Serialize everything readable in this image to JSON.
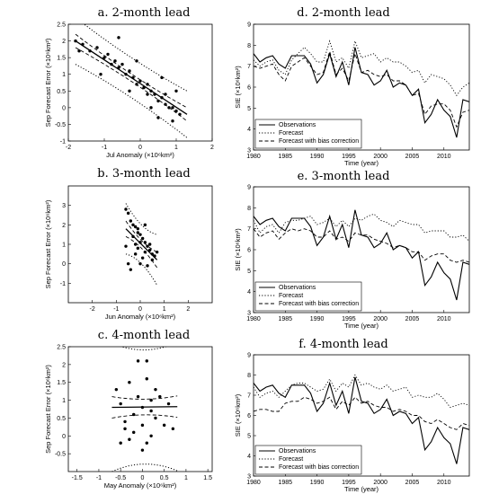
{
  "chart_data": [
    {
      "id": "a",
      "type": "scatter",
      "title": "a. 2-month lead",
      "xlabel": "Jul Anomaly (×10⁶km²)",
      "ylabel": "Sep Forecast Error (×10⁶km²)",
      "xlim": [
        -2,
        2
      ],
      "ylim": [
        -1,
        2.5
      ],
      "xticks": [
        -2,
        -1,
        0,
        1,
        2
      ],
      "yticks": [
        -1,
        -0.5,
        0,
        0.5,
        1,
        1.5,
        2,
        2.5
      ],
      "points": [
        [
          -1.8,
          2.0
        ],
        [
          -1.6,
          1.9
        ],
        [
          -1.4,
          1.7
        ],
        [
          -1.2,
          1.8
        ],
        [
          -1.0,
          1.5
        ],
        [
          -0.9,
          1.6
        ],
        [
          -0.8,
          1.3
        ],
        [
          -0.7,
          1.4
        ],
        [
          -0.6,
          1.2
        ],
        [
          -0.5,
          1.3
        ],
        [
          -0.4,
          1.0
        ],
        [
          -0.3,
          1.1
        ],
        [
          -0.2,
          0.9
        ],
        [
          -0.1,
          0.7
        ],
        [
          0.0,
          0.8
        ],
        [
          0.1,
          0.6
        ],
        [
          0.2,
          0.7
        ],
        [
          0.3,
          0.5
        ],
        [
          0.4,
          0.4
        ],
        [
          0.5,
          0.2
        ],
        [
          0.6,
          0.3
        ],
        [
          0.7,
          0.1
        ],
        [
          0.8,
          0.0
        ],
        [
          0.9,
          0.0
        ],
        [
          1.0,
          -0.1
        ],
        [
          1.1,
          -0.2
        ],
        [
          -1.1,
          1.0
        ],
        [
          -0.6,
          2.1
        ],
        [
          0.2,
          0.4
        ],
        [
          0.5,
          -0.3
        ],
        [
          0.6,
          0.9
        ],
        [
          0.9,
          -0.4
        ],
        [
          1.0,
          0.5
        ],
        [
          -0.3,
          0.5
        ],
        [
          0.3,
          0.0
        ],
        [
          -1.7,
          1.7
        ],
        [
          -0.1,
          1.4
        ],
        [
          0.7,
          0.4
        ]
      ],
      "fit": {
        "x": [
          -1.8,
          1.3
        ],
        "y": [
          2.0,
          -0.2
        ],
        "ci_halfwidth": [
          0.2,
          0.11,
          0.2
        ],
        "pi_halfwidth": [
          0.7,
          0.6,
          0.7
        ]
      }
    },
    {
      "id": "b",
      "type": "scatter",
      "title": "b. 3-month lead",
      "xlabel": "Jun Anomaly (×10⁶km²)",
      "ylabel": "Sep Forecast Error (×10⁶km²)",
      "xlim": [
        -3,
        3
      ],
      "ylim": [
        -2,
        4
      ],
      "xticks": [
        -2,
        -1,
        0,
        1,
        2
      ],
      "yticks": [
        -1,
        0,
        1,
        2,
        3
      ],
      "points": [
        [
          -0.6,
          2.8
        ],
        [
          -0.5,
          2.6
        ],
        [
          -0.4,
          2.2
        ],
        [
          -0.3,
          2.0
        ],
        [
          -0.2,
          1.9
        ],
        [
          -0.1,
          1.6
        ],
        [
          0.0,
          1.5
        ],
        [
          0.1,
          1.3
        ],
        [
          0.2,
          1.1
        ],
        [
          0.3,
          0.9
        ],
        [
          0.4,
          0.7
        ],
        [
          0.5,
          0.5
        ],
        [
          0.6,
          0.4
        ],
        [
          -0.3,
          1.4
        ],
        [
          -0.2,
          1.0
        ],
        [
          -0.1,
          0.8
        ],
        [
          0.0,
          1.1
        ],
        [
          0.1,
          0.3
        ],
        [
          0.2,
          0.6
        ],
        [
          0.3,
          -0.1
        ],
        [
          -0.5,
          0.0
        ],
        [
          -0.4,
          -0.3
        ],
        [
          -0.6,
          0.9
        ],
        [
          0.0,
          0.0
        ],
        [
          0.2,
          2.0
        ],
        [
          0.5,
          0.2
        ],
        [
          -0.2,
          0.5
        ],
        [
          0.4,
          1.0
        ],
        [
          -0.1,
          1.8
        ],
        [
          0.7,
          0.6
        ]
      ],
      "fit": {
        "x": [
          -0.6,
          0.7
        ],
        "y": [
          1.8,
          0.2
        ],
        "ci_halfwidth": [
          0.4,
          0.2,
          0.4
        ],
        "pi_halfwidth": [
          1.3,
          1.0,
          1.3
        ]
      }
    },
    {
      "id": "c",
      "type": "scatter",
      "title": "c. 4-month lead",
      "xlabel": "May Anomaly (×10⁶km²)",
      "ylabel": "Sep Forecast Error (×10⁶km²)",
      "xlim": [
        -1.7,
        1.6
      ],
      "ylim": [
        -1,
        2.5
      ],
      "xticks": [
        -1.5,
        -1,
        -0.5,
        0,
        0.5,
        1,
        1.5
      ],
      "yticks": [
        -0.5,
        0,
        0.5,
        1,
        1.5,
        2,
        2.5
      ],
      "points": [
        [
          -0.6,
          1.3
        ],
        [
          -0.5,
          0.9
        ],
        [
          -0.4,
          0.4
        ],
        [
          -0.3,
          -0.1
        ],
        [
          -0.2,
          0.1
        ],
        [
          -0.1,
          2.1
        ],
        [
          -0.1,
          1.1
        ],
        [
          0.0,
          0.8
        ],
        [
          0.0,
          0.3
        ],
        [
          0.1,
          -0.2
        ],
        [
          0.1,
          1.6
        ],
        [
          0.2,
          0.7
        ],
        [
          0.2,
          0.0
        ],
        [
          0.3,
          0.5
        ],
        [
          0.4,
          1.1
        ],
        [
          0.5,
          0.3
        ],
        [
          0.6,
          0.9
        ],
        [
          -0.2,
          0.6
        ],
        [
          -0.3,
          1.5
        ],
        [
          0.0,
          -0.4
        ],
        [
          0.3,
          1.3
        ],
        [
          -0.4,
          0.2
        ],
        [
          0.1,
          2.1
        ],
        [
          -0.5,
          -0.2
        ],
        [
          0.7,
          0.2
        ],
        [
          0.2,
          1.0
        ]
      ],
      "fit": {
        "x": [
          -0.7,
          0.8
        ],
        "y": [
          0.8,
          0.82
        ],
        "ci_halfwidth": [
          0.3,
          0.22,
          0.3
        ],
        "pi_halfwidth": [
          1.8,
          1.6,
          1.8
        ]
      }
    },
    {
      "id": "d",
      "type": "line",
      "title": "d. 2-month lead",
      "xlabel": "Time (year)",
      "ylabel": "SIE (×10⁶km²)",
      "xlim": [
        1980,
        2014
      ],
      "ylim": [
        3,
        9
      ],
      "xticks": [
        1980,
        1985,
        1990,
        1995,
        2000,
        2005,
        2010
      ],
      "yticks": [
        3,
        4,
        5,
        6,
        7,
        8,
        9
      ],
      "legend": "bottom-left",
      "x": [
        1980,
        1981,
        1982,
        1983,
        1984,
        1985,
        1986,
        1987,
        1988,
        1989,
        1990,
        1991,
        1992,
        1993,
        1994,
        1995,
        1996,
        1997,
        1998,
        1999,
        2000,
        2001,
        2002,
        2003,
        2004,
        2005,
        2006,
        2007,
        2008,
        2009,
        2010,
        2011,
        2012,
        2013,
        2014
      ],
      "series": [
        {
          "name": "Observations",
          "dash": "solid",
          "values": [
            7.6,
            7.2,
            7.4,
            7.5,
            7.1,
            6.9,
            7.5,
            7.5,
            7.5,
            7.1,
            6.2,
            6.6,
            7.6,
            6.5,
            7.2,
            6.1,
            7.9,
            6.7,
            6.6,
            6.1,
            6.3,
            6.8,
            6.0,
            6.2,
            6.1,
            5.6,
            5.9,
            4.3,
            4.7,
            5.4,
            4.9,
            4.6,
            3.6,
            5.4,
            5.3
          ]
        },
        {
          "name": "Forecast",
          "dash": "dotted",
          "values": [
            7.3,
            7.0,
            7.2,
            7.3,
            6.8,
            6.6,
            7.3,
            7.6,
            7.9,
            7.6,
            7.2,
            7.2,
            8.2,
            7.2,
            7.4,
            6.9,
            8.2,
            7.4,
            7.5,
            7.6,
            7.2,
            7.4,
            7.2,
            7.2,
            7.0,
            6.7,
            6.8,
            6.2,
            6.6,
            6.5,
            6.4,
            6.1,
            5.6,
            6.0,
            6.2
          ]
        },
        {
          "name": "Forecast with bias correction",
          "dash": "dashed",
          "values": [
            7.0,
            6.9,
            7.0,
            7.1,
            6.6,
            6.3,
            7.0,
            7.2,
            7.4,
            7.0,
            6.6,
            6.7,
            7.7,
            6.6,
            6.9,
            6.3,
            7.6,
            6.7,
            6.8,
            6.6,
            6.5,
            6.6,
            6.3,
            6.3,
            6.1,
            5.6,
            5.7,
            4.7,
            5.1,
            5.2,
            5.2,
            4.9,
            4.1,
            4.8,
            4.9
          ]
        }
      ]
    },
    {
      "id": "e",
      "type": "line",
      "title": "e. 3-month lead",
      "xlabel": "Time (year)",
      "ylabel": "SIE (×10⁶km²)",
      "xlim": [
        1980,
        2014
      ],
      "ylim": [
        3,
        9
      ],
      "xticks": [
        1980,
        1985,
        1990,
        1995,
        2000,
        2005,
        2010
      ],
      "yticks": [
        3,
        4,
        5,
        6,
        7,
        8,
        9
      ],
      "legend": "bottom-left",
      "x": [
        1980,
        1981,
        1982,
        1983,
        1984,
        1985,
        1986,
        1987,
        1988,
        1989,
        1990,
        1991,
        1992,
        1993,
        1994,
        1995,
        1996,
        1997,
        1998,
        1999,
        2000,
        2001,
        2002,
        2003,
        2004,
        2005,
        2006,
        2007,
        2008,
        2009,
        2010,
        2011,
        2012,
        2013,
        2014
      ],
      "series": [
        {
          "name": "Observations",
          "dash": "solid",
          "values": [
            7.6,
            7.2,
            7.4,
            7.5,
            7.1,
            6.9,
            7.5,
            7.5,
            7.5,
            7.1,
            6.2,
            6.6,
            7.6,
            6.5,
            7.2,
            6.1,
            7.9,
            6.7,
            6.6,
            6.1,
            6.3,
            6.8,
            6.0,
            6.2,
            6.1,
            5.6,
            5.9,
            4.3,
            4.7,
            5.4,
            4.9,
            4.6,
            3.6,
            5.4,
            5.3
          ]
        },
        {
          "name": "Forecast",
          "dash": "dotted",
          "values": [
            7.4,
            6.8,
            7.1,
            7.2,
            6.8,
            7.3,
            7.4,
            7.4,
            7.5,
            7.6,
            7.2,
            7.3,
            7.5,
            7.1,
            7.4,
            7.1,
            7.5,
            7.4,
            7.6,
            7.7,
            7.4,
            7.3,
            7.1,
            7.4,
            7.3,
            7.2,
            7.2,
            6.8,
            6.9,
            6.9,
            6.9,
            6.6,
            6.6,
            6.7,
            6.4
          ]
        },
        {
          "name": "Forecast with bias correction",
          "dash": "dashed",
          "values": [
            7.0,
            6.6,
            6.8,
            6.9,
            6.5,
            6.8,
            7.0,
            6.9,
            7.0,
            6.9,
            6.6,
            6.6,
            6.9,
            6.5,
            6.6,
            6.4,
            6.8,
            6.7,
            6.7,
            6.5,
            6.4,
            6.3,
            6.1,
            6.2,
            6.1,
            5.9,
            5.9,
            5.5,
            5.7,
            5.8,
            5.8,
            5.5,
            5.4,
            5.5,
            5.4
          ]
        }
      ]
    },
    {
      "id": "f",
      "type": "line",
      "title": "f. 4-month lead",
      "xlabel": "Time (year)",
      "ylabel": "SIE (×10⁶km²)",
      "xlim": [
        1980,
        2014
      ],
      "ylim": [
        3,
        9
      ],
      "xticks": [
        1980,
        1985,
        1990,
        1995,
        2000,
        2005,
        2010
      ],
      "yticks": [
        3,
        4,
        5,
        6,
        7,
        8,
        9
      ],
      "legend": "bottom-left",
      "x": [
        1980,
        1981,
        1982,
        1983,
        1984,
        1985,
        1986,
        1987,
        1988,
        1989,
        1990,
        1991,
        1992,
        1993,
        1994,
        1995,
        1996,
        1997,
        1998,
        1999,
        2000,
        2001,
        2002,
        2003,
        2004,
        2005,
        2006,
        2007,
        2008,
        2009,
        2010,
        2011,
        2012,
        2013,
        2014
      ],
      "series": [
        {
          "name": "Observations",
          "dash": "solid",
          "values": [
            7.6,
            7.2,
            7.4,
            7.5,
            7.1,
            6.9,
            7.5,
            7.5,
            7.5,
            7.1,
            6.2,
            6.6,
            7.6,
            6.5,
            7.2,
            6.1,
            7.9,
            6.7,
            6.6,
            6.1,
            6.3,
            6.8,
            6.0,
            6.2,
            6.1,
            5.6,
            5.9,
            4.3,
            4.7,
            5.4,
            4.9,
            4.6,
            3.6,
            5.4,
            5.3
          ]
        },
        {
          "name": "Forecast",
          "dash": "dotted",
          "values": [
            7.4,
            6.9,
            7.1,
            7.2,
            6.9,
            7.2,
            7.5,
            7.6,
            7.6,
            7.4,
            7.2,
            7.3,
            7.8,
            7.2,
            7.6,
            7.4,
            8.0,
            7.5,
            7.6,
            7.4,
            7.3,
            7.5,
            7.2,
            7.3,
            7.4,
            6.9,
            7.0,
            6.9,
            6.9,
            7.1,
            6.8,
            6.4,
            6.5,
            6.6,
            6.5
          ]
        },
        {
          "name": "Forecast with bias correction",
          "dash": "dashed",
          "values": [
            6.2,
            6.3,
            6.3,
            6.2,
            6.2,
            6.6,
            6.7,
            6.7,
            6.9,
            6.8,
            6.6,
            6.7,
            6.9,
            6.3,
            6.7,
            6.5,
            6.9,
            6.6,
            6.7,
            6.5,
            6.4,
            6.4,
            6.2,
            6.3,
            6.2,
            6.0,
            6.0,
            5.7,
            5.6,
            5.8,
            5.6,
            5.4,
            5.3,
            5.6,
            5.5
          ]
        }
      ]
    }
  ]
}
